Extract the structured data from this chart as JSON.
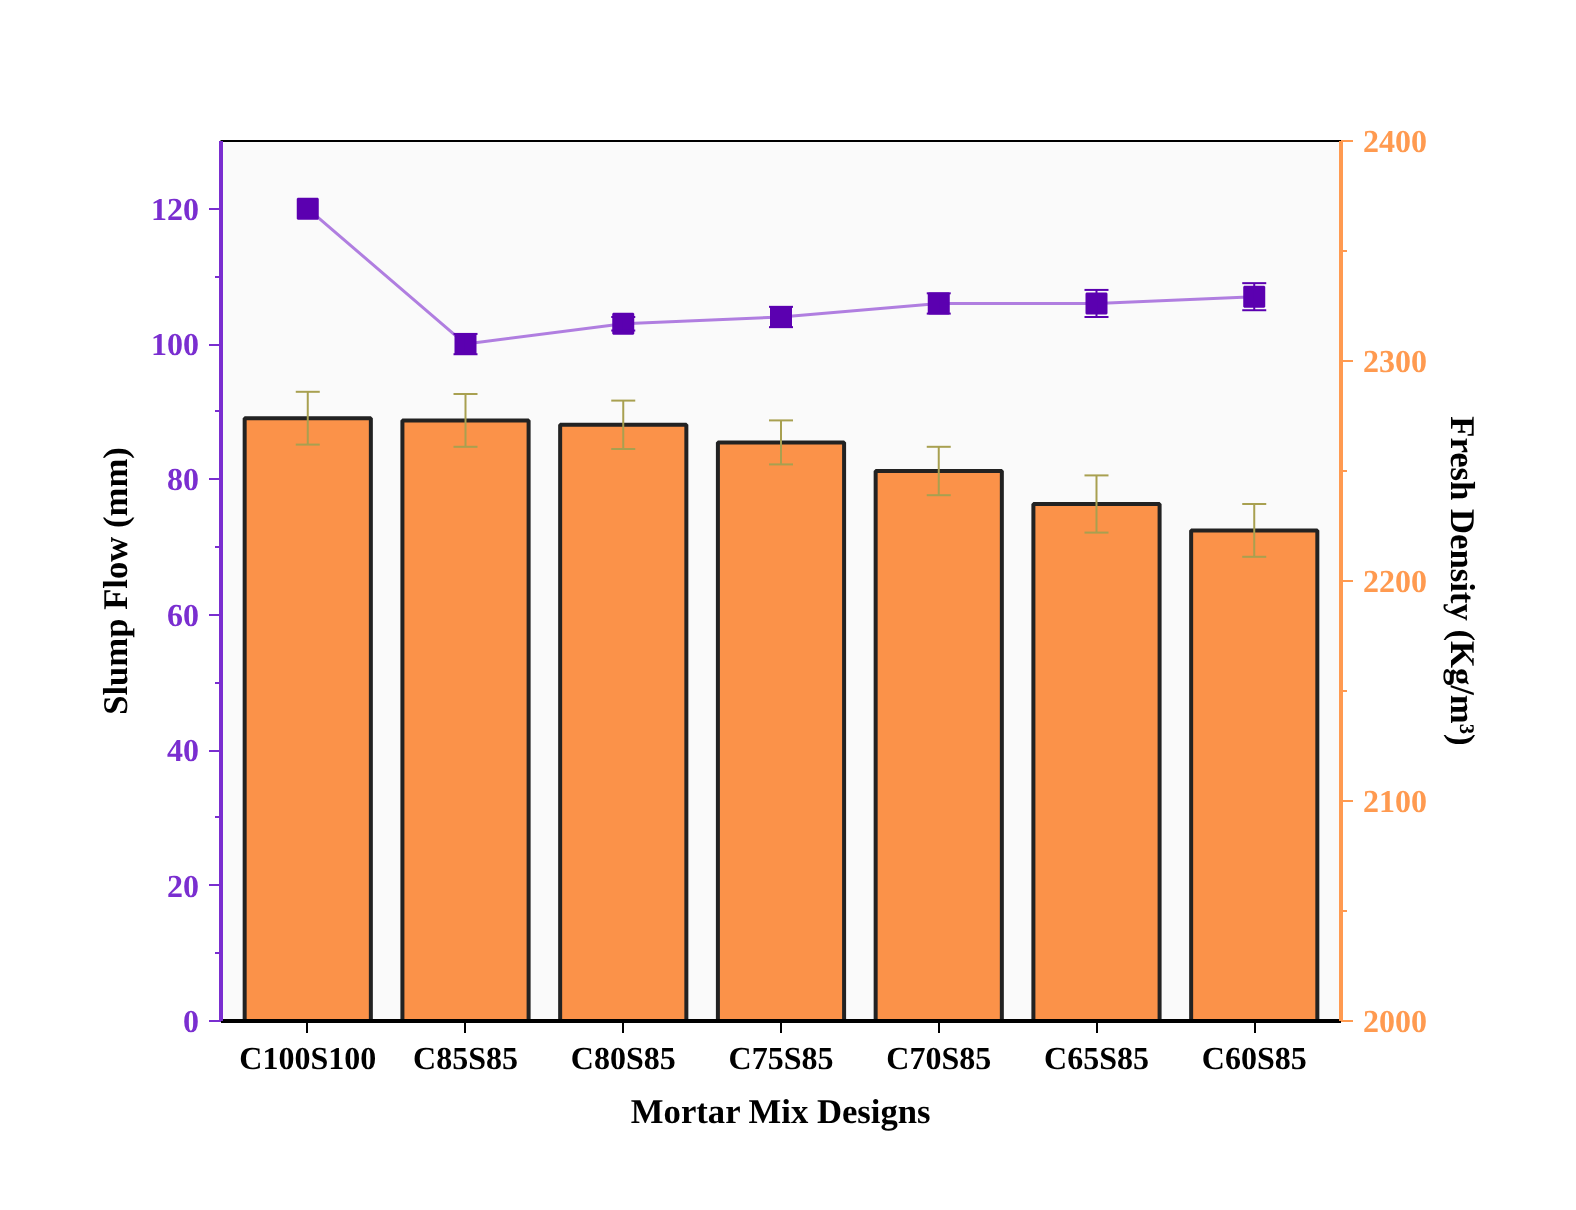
{
  "chart_data": {
    "type": "bar",
    "xlabel": "Mortar Mix Designs",
    "ylabel": "Slump Flow (mm)",
    "y2label": "Fresh Density (Kg/m³)",
    "categories": [
      "C100S100",
      "C85S85",
      "C80S85",
      "C75S85",
      "C70S85",
      "C65S85",
      "C60S85"
    ],
    "ylim": [
      0,
      130
    ],
    "yticks": [
      0,
      20,
      40,
      60,
      80,
      100,
      120
    ],
    "y2lim": [
      2000,
      2400
    ],
    "y2ticks": [
      2000,
      2100,
      2200,
      2300,
      2400
    ],
    "grid": false,
    "series": [
      {
        "axis": "y2",
        "color": "#fb9249",
        "values": [
          2274,
          2273,
          2271,
          2263,
          2250,
          2235,
          2223
        ],
        "errors": [
          12,
          12,
          11,
          10,
          11,
          13,
          12
        ]
      },
      {
        "type": "line",
        "axis": "y",
        "color": "#5b00b0",
        "marker": "square",
        "line_style": "solid",
        "values": [
          120,
          100,
          103,
          104,
          106,
          106,
          107
        ],
        "errors": [
          null,
          1.5,
          1,
          1.5,
          1.5,
          2,
          2
        ]
      }
    ]
  }
}
